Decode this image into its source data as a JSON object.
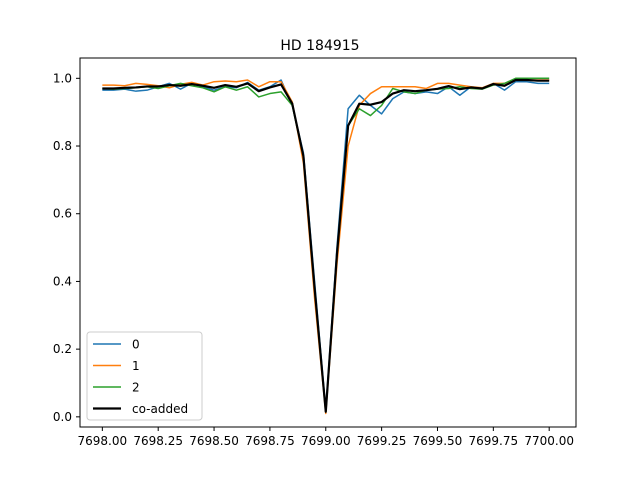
{
  "chart_data": {
    "type": "line",
    "title": "HD 184915",
    "xlabel": "",
    "ylabel": "",
    "xlim": [
      7697.9,
      7700.12
    ],
    "ylim": [
      -0.03,
      1.06
    ],
    "xticks": [
      7698.0,
      7698.25,
      7698.5,
      7698.75,
      7699.0,
      7699.25,
      7699.5,
      7699.75,
      7700.0
    ],
    "xtick_labels": [
      "7698.00",
      "7698.25",
      "7698.50",
      "7698.75",
      "7699.00",
      "7699.25",
      "7699.50",
      "7699.75",
      "7700.00"
    ],
    "yticks": [
      0.0,
      0.2,
      0.4,
      0.6,
      0.8,
      1.0
    ],
    "ytick_labels": [
      "0.0",
      "0.2",
      "0.4",
      "0.6",
      "0.8",
      "1.0"
    ],
    "grid": false,
    "legend_position": "lower-left",
    "x": [
      7698.0,
      7698.05,
      7698.1,
      7698.15,
      7698.2,
      7698.25,
      7698.3,
      7698.35,
      7698.4,
      7698.45,
      7698.5,
      7698.55,
      7698.6,
      7698.65,
      7698.7,
      7698.75,
      7698.8,
      7698.85,
      7698.9,
      7698.95,
      7699.0,
      7699.05,
      7699.1,
      7699.15,
      7699.2,
      7699.25,
      7699.3,
      7699.35,
      7699.4,
      7699.45,
      7699.5,
      7699.55,
      7699.6,
      7699.65,
      7699.7,
      7699.75,
      7699.8,
      7699.85,
      7699.9,
      7699.95,
      7700.0
    ],
    "series": [
      {
        "name": "0",
        "color": "#1f77b4",
        "width": 1.5,
        "values": [
          0.965,
          0.965,
          0.968,
          0.962,
          0.965,
          0.975,
          0.985,
          0.968,
          0.985,
          0.975,
          0.965,
          0.975,
          0.972,
          0.988,
          0.965,
          0.975,
          0.995,
          0.92,
          0.78,
          0.4,
          0.02,
          0.5,
          0.91,
          0.95,
          0.92,
          0.895,
          0.94,
          0.96,
          0.955,
          0.96,
          0.955,
          0.975,
          0.95,
          0.975,
          0.97,
          0.985,
          0.965,
          0.99,
          0.99,
          0.985,
          0.985
        ]
      },
      {
        "name": "1",
        "color": "#ff7f0e",
        "width": 1.5,
        "values": [
          0.98,
          0.98,
          0.978,
          0.985,
          0.982,
          0.978,
          0.972,
          0.982,
          0.988,
          0.98,
          0.99,
          0.992,
          0.99,
          0.995,
          0.975,
          0.99,
          0.99,
          0.93,
          0.75,
          0.35,
          0.01,
          0.45,
          0.8,
          0.92,
          0.955,
          0.975,
          0.975,
          0.975,
          0.975,
          0.97,
          0.985,
          0.985,
          0.98,
          0.975,
          0.972,
          0.985,
          0.985,
          0.995,
          0.995,
          0.995,
          0.995
        ]
      },
      {
        "name": "2",
        "color": "#2ca02c",
        "width": 1.5,
        "values": [
          0.97,
          0.968,
          0.97,
          0.972,
          0.975,
          0.97,
          0.978,
          0.985,
          0.978,
          0.972,
          0.96,
          0.975,
          0.965,
          0.975,
          0.945,
          0.955,
          0.96,
          0.92,
          0.77,
          0.38,
          0.015,
          0.48,
          0.86,
          0.91,
          0.89,
          0.92,
          0.97,
          0.96,
          0.955,
          0.965,
          0.968,
          0.97,
          0.975,
          0.97,
          0.968,
          0.98,
          0.985,
          1.0,
          1.0,
          1.0,
          1.0
        ]
      },
      {
        "name": "co-added",
        "color": "#000000",
        "width": 2.2,
        "values": [
          0.97,
          0.97,
          0.972,
          0.973,
          0.976,
          0.976,
          0.98,
          0.978,
          0.983,
          0.978,
          0.972,
          0.98,
          0.975,
          0.985,
          0.962,
          0.973,
          0.982,
          0.925,
          0.77,
          0.38,
          0.015,
          0.48,
          0.86,
          0.925,
          0.922,
          0.93,
          0.955,
          0.965,
          0.962,
          0.965,
          0.969,
          0.977,
          0.968,
          0.973,
          0.97,
          0.983,
          0.978,
          0.995,
          0.995,
          0.993,
          0.993
        ]
      }
    ]
  }
}
